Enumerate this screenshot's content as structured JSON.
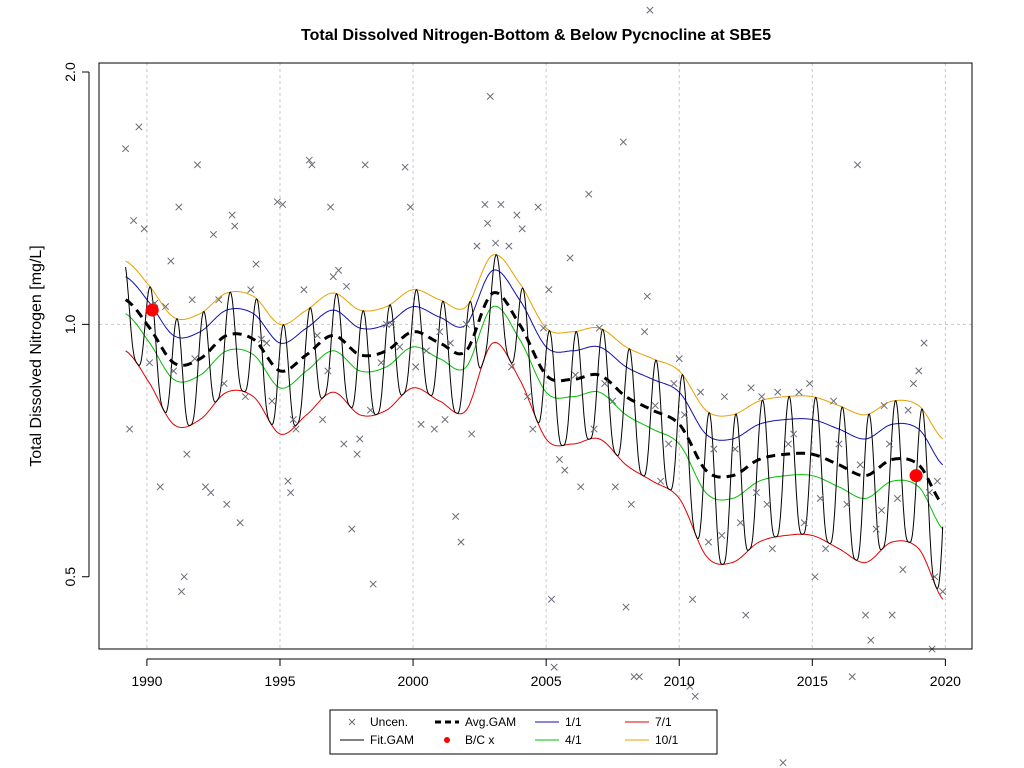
{
  "chart_data": {
    "type": "line",
    "title": "Total Dissolved Nitrogen-Bottom & Below Pycnocline at SBE5",
    "xlabel": "",
    "ylabel": "Total Dissolved Nitrogen [mg/L]",
    "x_scale": "linear",
    "y_scale": "log",
    "xlim": [
      1988.2,
      2021.0
    ],
    "ylim": [
      0.41,
      2.05
    ],
    "x_ticks": [
      "1990",
      "1995",
      "2000",
      "2005",
      "2010",
      "2015",
      "2020"
    ],
    "y_ticks": [
      "0.5",
      "1.0",
      "2.0"
    ],
    "grid": "dashed gray at x ticks, y = 1.0 only",
    "legend_position": "bottom-center",
    "legend": [
      {
        "label": "Uncen.",
        "kind": "point",
        "symbol": "x",
        "color": "#6b6b78"
      },
      {
        "label": "Avg.GAM",
        "kind": "line",
        "style": "dashed",
        "color": "#000000"
      },
      {
        "label": "1/1",
        "kind": "line",
        "color": "#1010b0"
      },
      {
        "label": "7/1",
        "kind": "line",
        "color": "#e00000"
      },
      {
        "label": "Fit.GAM",
        "kind": "line",
        "color": "#000000"
      },
      {
        "label": "B/C x",
        "kind": "point",
        "symbol": "dot",
        "color": "#ff0000"
      },
      {
        "label": "4/1",
        "kind": "line",
        "color": "#00c000"
      },
      {
        "label": "10/1",
        "kind": "line",
        "color": "#e8a000"
      }
    ],
    "avg_gam": {
      "x": [
        1989.2,
        1990.0,
        1991.0,
        1992.0,
        1993.0,
        1994.0,
        1995.0,
        1996.0,
        1997.0,
        1998.0,
        1999.0,
        2000.0,
        2001.0,
        2002.0,
        2003.0,
        2004.0,
        2005.0,
        2006.0,
        2007.0,
        2008.0,
        2009.0,
        2010.0,
        2011.0,
        2012.0,
        2013.0,
        2014.0,
        2015.0,
        2016.0,
        2017.0,
        2018.0,
        2019.0,
        2019.9
      ],
      "y": [
        1.07,
        1.0,
        0.9,
        0.91,
        0.97,
        0.96,
        0.88,
        0.92,
        0.97,
        0.92,
        0.93,
        0.98,
        0.95,
        0.93,
        1.09,
        1.0,
        0.87,
        0.86,
        0.87,
        0.82,
        0.79,
        0.76,
        0.67,
        0.66,
        0.69,
        0.7,
        0.7,
        0.68,
        0.66,
        0.69,
        0.68,
        0.61
      ]
    },
    "seasonal_offsets": [
      {
        "name": "1/1",
        "color": "#1010b0",
        "offset": 0.07
      },
      {
        "name": "4/1",
        "color": "#00c000",
        "offset": -0.04
      },
      {
        "name": "7/1",
        "color": "#e00000",
        "offset": -0.14
      },
      {
        "name": "10/1",
        "color": "#e8a000",
        "offset": 0.12
      }
    ],
    "bc_points": [
      {
        "x": 1990.2,
        "y": 1.04
      },
      {
        "x": 2018.9,
        "y": 0.66
      }
    ],
    "uncensored_points": [
      [
        1989.2,
        1.62
      ],
      [
        1989.35,
        0.75
      ],
      [
        1989.5,
        1.33
      ],
      [
        1989.7,
        1.72
      ],
      [
        1989.9,
        1.3
      ],
      [
        1990.1,
        0.9
      ],
      [
        1990.3,
        1.06
      ],
      [
        1990.5,
        0.64
      ],
      [
        1990.7,
        1.05
      ],
      [
        1990.9,
        1.19
      ],
      [
        1991.0,
        0.88
      ],
      [
        1991.2,
        1.38
      ],
      [
        1991.3,
        0.48
      ],
      [
        1991.4,
        0.5
      ],
      [
        1991.5,
        0.7
      ],
      [
        1991.7,
        1.07
      ],
      [
        1991.8,
        0.91
      ],
      [
        1991.9,
        1.55
      ],
      [
        1992.2,
        0.64
      ],
      [
        1992.4,
        0.63
      ],
      [
        1992.5,
        1.28
      ],
      [
        1992.7,
        1.07
      ],
      [
        1992.9,
        0.85
      ],
      [
        1993.0,
        0.61
      ],
      [
        1993.2,
        1.35
      ],
      [
        1993.3,
        1.31
      ],
      [
        1993.5,
        0.58
      ],
      [
        1993.7,
        0.82
      ],
      [
        1993.9,
        1.1
      ],
      [
        1994.1,
        1.18
      ],
      [
        1994.3,
        0.96
      ],
      [
        1994.5,
        0.95
      ],
      [
        1994.7,
        0.81
      ],
      [
        1994.9,
        1.4
      ],
      [
        1995.1,
        1.39
      ],
      [
        1995.3,
        0.65
      ],
      [
        1995.4,
        0.63
      ],
      [
        1995.5,
        0.77
      ],
      [
        1995.6,
        0.75
      ],
      [
        1995.9,
        1.1
      ],
      [
        1996.1,
        1.57
      ],
      [
        1996.2,
        1.55
      ],
      [
        1996.4,
        0.97
      ],
      [
        1996.6,
        0.77
      ],
      [
        1996.8,
        0.88
      ],
      [
        1996.9,
        1.38
      ],
      [
        1997.0,
        1.14
      ],
      [
        1997.2,
        1.16
      ],
      [
        1997.4,
        0.72
      ],
      [
        1997.5,
        1.11
      ],
      [
        1997.7,
        0.57
      ],
      [
        1997.9,
        0.7
      ],
      [
        1998.0,
        0.73
      ],
      [
        1998.2,
        1.55
      ],
      [
        1998.4,
        0.79
      ],
      [
        1998.5,
        0.49
      ],
      [
        1998.8,
        0.9
      ],
      [
        1999.0,
        1.0
      ],
      [
        1999.2,
        1.0
      ],
      [
        1999.5,
        0.94
      ],
      [
        1999.7,
        1.54
      ],
      [
        1999.9,
        1.38
      ],
      [
        2000.1,
        0.89
      ],
      [
        2000.3,
        0.76
      ],
      [
        2000.5,
        0.93
      ],
      [
        2000.8,
        0.75
      ],
      [
        2001.0,
        0.98
      ],
      [
        2001.2,
        0.77
      ],
      [
        2001.4,
        0.95
      ],
      [
        2001.6,
        0.59
      ],
      [
        2001.8,
        0.55
      ],
      [
        2002.0,
        1.0
      ],
      [
        2002.2,
        0.74
      ],
      [
        2002.4,
        1.24
      ],
      [
        2002.7,
        1.39
      ],
      [
        2002.8,
        1.32
      ],
      [
        2002.9,
        1.87
      ],
      [
        2003.1,
        1.25
      ],
      [
        2003.3,
        1.39
      ],
      [
        2003.6,
        1.24
      ],
      [
        2003.7,
        0.89
      ],
      [
        2003.9,
        1.35
      ],
      [
        2004.1,
        1.3
      ],
      [
        2004.3,
        0.82
      ],
      [
        2004.5,
        0.75
      ],
      [
        2004.7,
        1.38
      ],
      [
        2004.9,
        0.99
      ],
      [
        2005.1,
        1.1
      ],
      [
        2005.2,
        0.47
      ],
      [
        2005.3,
        0.39
      ],
      [
        2005.5,
        0.69
      ],
      [
        2005.7,
        0.67
      ],
      [
        2005.9,
        1.2
      ],
      [
        2006.1,
        0.87
      ],
      [
        2006.3,
        0.64
      ],
      [
        2006.6,
        1.43
      ],
      [
        2006.8,
        0.75
      ],
      [
        2007.0,
        0.99
      ],
      [
        2007.2,
        0.85
      ],
      [
        2007.5,
        0.81
      ],
      [
        2007.6,
        0.64
      ],
      [
        2007.9,
        1.65
      ],
      [
        2008.0,
        0.46
      ],
      [
        2008.2,
        0.61
      ],
      [
        2008.3,
        0.38
      ],
      [
        2008.5,
        0.38
      ],
      [
        2008.7,
        0.98
      ],
      [
        2008.8,
        1.08
      ],
      [
        2008.9,
        2.37
      ],
      [
        2009.1,
        0.8
      ],
      [
        2009.3,
        0.65
      ],
      [
        2009.6,
        0.72
      ],
      [
        2009.8,
        0.85
      ],
      [
        2010.0,
        0.91
      ],
      [
        2010.2,
        0.78
      ],
      [
        2010.4,
        0.37
      ],
      [
        2010.5,
        0.47
      ],
      [
        2010.6,
        0.36
      ],
      [
        2010.8,
        0.83
      ],
      [
        2011.1,
        0.55
      ],
      [
        2011.3,
        0.71
      ],
      [
        2011.6,
        0.56
      ],
      [
        2011.7,
        0.82
      ],
      [
        2012.1,
        0.71
      ],
      [
        2012.3,
        0.58
      ],
      [
        2012.5,
        0.45
      ],
      [
        2012.7,
        0.84
      ],
      [
        2012.9,
        0.63
      ],
      [
        2013.1,
        0.82
      ],
      [
        2013.3,
        0.61
      ],
      [
        2013.5,
        0.54
      ],
      [
        2013.7,
        0.83
      ],
      [
        2013.9,
        0.3
      ],
      [
        2014.1,
        0.72
      ],
      [
        2014.3,
        0.74
      ],
      [
        2014.5,
        0.83
      ],
      [
        2014.7,
        0.58
      ],
      [
        2014.9,
        0.85
      ],
      [
        2015.1,
        0.5
      ],
      [
        2015.3,
        0.62
      ],
      [
        2015.5,
        0.54
      ],
      [
        2015.8,
        0.81
      ],
      [
        2016.0,
        0.72
      ],
      [
        2016.3,
        0.61
      ],
      [
        2016.5,
        0.38
      ],
      [
        2016.7,
        1.55
      ],
      [
        2016.8,
        0.68
      ],
      [
        2017.0,
        0.45
      ],
      [
        2017.2,
        0.42
      ],
      [
        2017.4,
        0.57
      ],
      [
        2017.6,
        0.6
      ],
      [
        2017.7,
        0.8
      ],
      [
        2017.9,
        0.72
      ],
      [
        2018.0,
        0.45
      ],
      [
        2018.2,
        0.62
      ],
      [
        2018.4,
        0.51
      ],
      [
        2018.6,
        0.79
      ],
      [
        2018.8,
        0.85
      ],
      [
        2019.0,
        0.88
      ],
      [
        2019.2,
        0.95
      ],
      [
        2019.4,
        0.63
      ],
      [
        2019.5,
        0.41
      ],
      [
        2019.6,
        0.5
      ],
      [
        2019.7,
        0.65
      ],
      [
        2019.9,
        0.48
      ]
    ]
  }
}
